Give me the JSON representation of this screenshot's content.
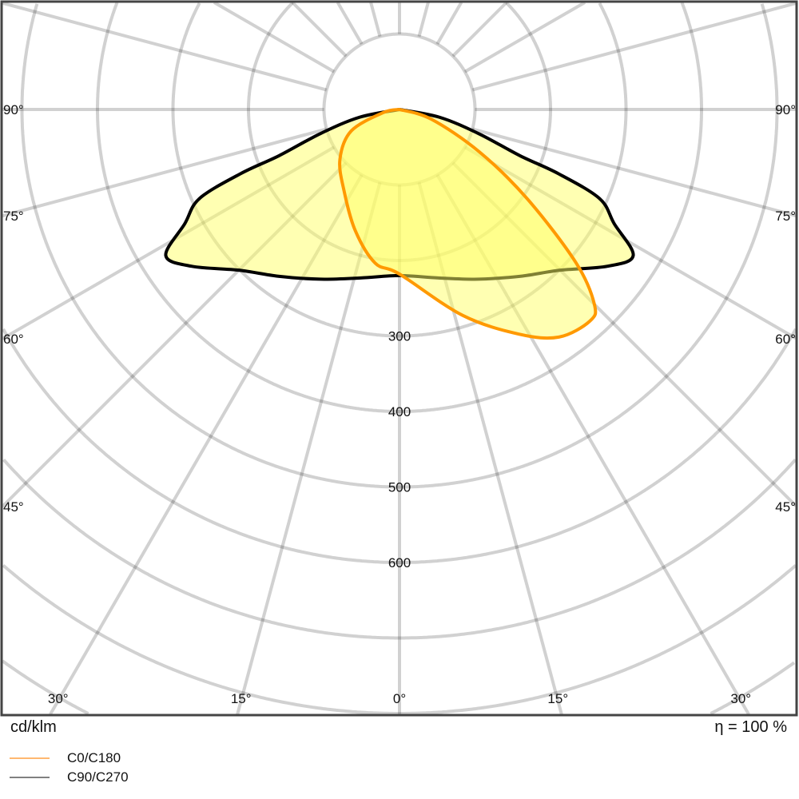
{
  "chart_data": {
    "type": "polar",
    "unit_label": "cd/klm",
    "efficiency_label": "η = 100 %",
    "radial_ticks": [
      300,
      400,
      500,
      600
    ],
    "radial_grid_step": 100,
    "angle_tick_labels": {
      "sides": [
        "90°",
        "75°",
        "60°",
        "45°"
      ],
      "bottom": [
        "30°",
        "15°",
        "0°",
        "15°",
        "30°"
      ]
    },
    "angle_grid_step_deg": 15,
    "orientation": "0° pointing down",
    "grid": true,
    "legend_placement": "bottom-left",
    "series": [
      {
        "name": "C0/C180",
        "color": "#ff9900",
        "legend_color": "#ffb870",
        "fill": "#ffff66",
        "points": [
          [
            -90,
            0
          ],
          [
            -79,
            22
          ],
          [
            -66,
            70
          ],
          [
            -50,
            103
          ],
          [
            -34,
            131
          ],
          [
            -20,
            171
          ],
          [
            -9,
            206
          ],
          [
            0,
            218
          ],
          [
            17,
            285
          ],
          [
            28,
            337
          ],
          [
            35,
            368
          ],
          [
            42,
            377
          ],
          [
            45,
            365
          ],
          [
            49,
            310
          ],
          [
            55,
            207
          ],
          [
            62,
            120
          ],
          [
            73,
            44
          ],
          [
            90,
            0
          ]
        ]
      },
      {
        "name": "C90/C270",
        "color": "#000000",
        "legend_color": "#808080",
        "fill": "#ffff66",
        "points": [
          [
            -90,
            0
          ],
          [
            -79,
            54
          ],
          [
            -73,
            110
          ],
          [
            -69,
            171
          ],
          [
            -68,
            227
          ],
          [
            -66,
            290
          ],
          [
            -62,
            322
          ],
          [
            -58,
            365
          ],
          [
            -53,
            345
          ],
          [
            -45,
            301
          ],
          [
            -36,
            273
          ],
          [
            -25,
            248
          ],
          [
            -13,
            229
          ],
          [
            0,
            220
          ],
          [
            13,
            229
          ],
          [
            25,
            248
          ],
          [
            36,
            273
          ],
          [
            45,
            301
          ],
          [
            53,
            345
          ],
          [
            58,
            365
          ],
          [
            62,
            322
          ],
          [
            66,
            290
          ],
          [
            68,
            227
          ],
          [
            69,
            171
          ],
          [
            73,
            110
          ],
          [
            79,
            54
          ],
          [
            90,
            0
          ]
        ]
      }
    ]
  }
}
